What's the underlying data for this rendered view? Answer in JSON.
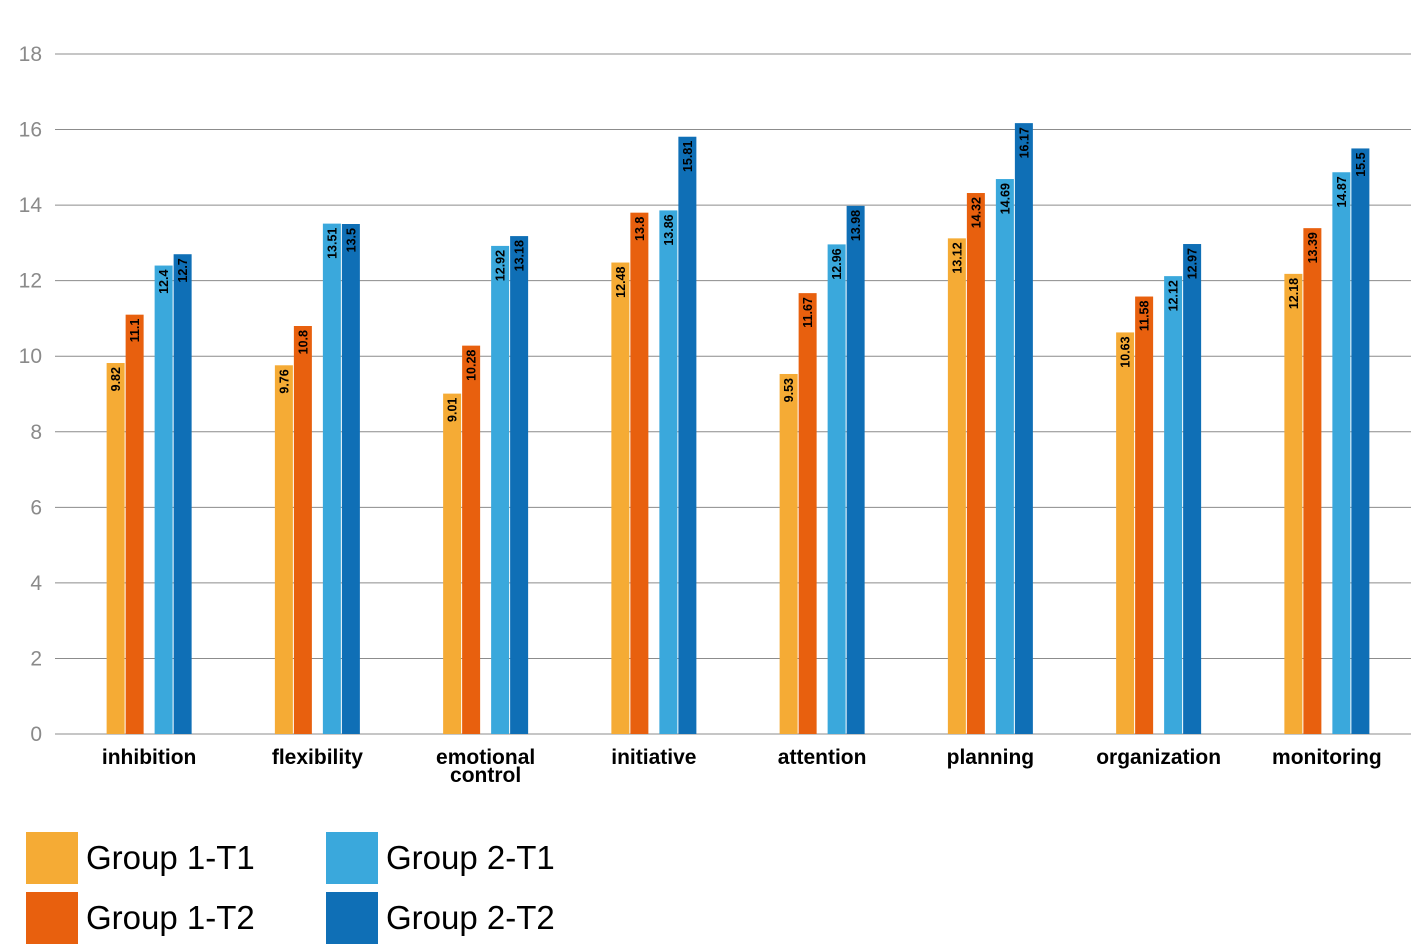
{
  "chart_data": {
    "type": "bar",
    "title": "",
    "xlabel": "",
    "ylabel": "",
    "ylim": [
      0,
      18
    ],
    "yticks": [
      0,
      2,
      4,
      6,
      8,
      10,
      12,
      14,
      16,
      18
    ],
    "grid": true,
    "legend_position": "bottom-left",
    "categories": [
      "inhibition",
      "flexibility",
      "emotional control",
      "initiative",
      "attention",
      "planning",
      "organization",
      "monitoring"
    ],
    "category_lines": [
      [
        "inhibition"
      ],
      [
        "flexibility"
      ],
      [
        "emotional",
        "control"
      ],
      [
        "initiative"
      ],
      [
        "attention"
      ],
      [
        "planning"
      ],
      [
        "organization"
      ],
      [
        "monitoring"
      ]
    ],
    "series": [
      {
        "name": "Group 1-T1",
        "color": "#f5ab35",
        "values": [
          9.82,
          9.76,
          9.01,
          12.48,
          9.53,
          13.12,
          10.63,
          12.18
        ]
      },
      {
        "name": "Group 1-T2",
        "color": "#e8600e",
        "values": [
          11.1,
          10.8,
          10.28,
          13.8,
          11.67,
          14.32,
          11.58,
          13.39
        ]
      },
      {
        "name": "Group 2-T1",
        "color": "#3aa8dc",
        "values": [
          12.4,
          13.51,
          12.92,
          13.86,
          12.96,
          14.69,
          12.12,
          14.87
        ]
      },
      {
        "name": "Group 2-T2",
        "color": "#0f6fb6",
        "values": [
          12.7,
          13.5,
          13.18,
          15.81,
          13.98,
          16.17,
          12.97,
          15.5
        ]
      }
    ]
  }
}
